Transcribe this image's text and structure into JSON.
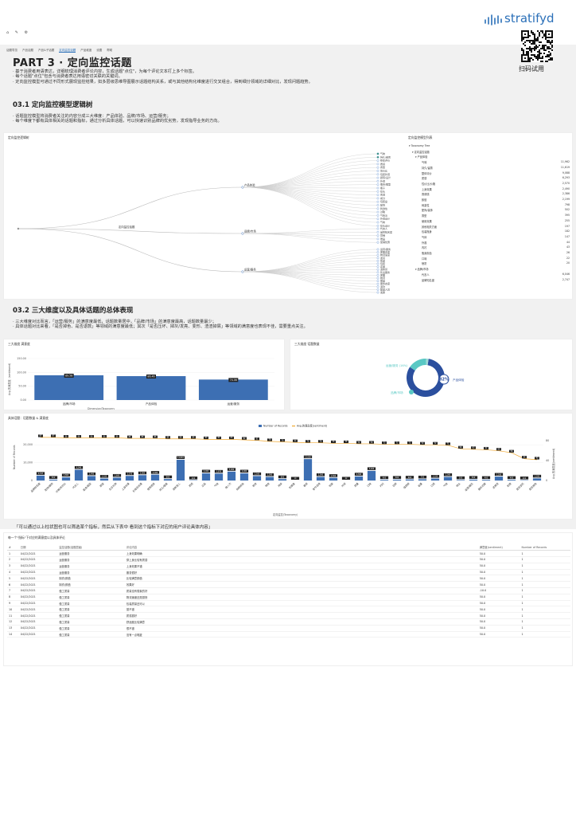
{
  "brand": {
    "logo_text": "stratifyd",
    "qr_caption": "扫码试用"
  },
  "toolbar": {
    "icons": [
      "home-icon",
      "pencil-icon",
      "gear-icon"
    ]
  },
  "tabs": [
    "话题导览",
    "产品话题",
    "产品&子话题",
    "定向监控话题",
    "产品维度",
    "设置",
    "帮助"
  ],
  "active_tab": 3,
  "part_title": "PART 3 · 定向监控话题",
  "intro_bullets": [
    "基于消费者用语表达，详细梳理消费者评论内容，生成话题\"点位\"，为每个评论文本打上多个标签。",
    "每个话题\"点位\"包含与消费者表达用语密切关联的关键词。",
    "定向监控模型可通过不同形式展现监控结果，如多层级思维导图展示话题结构关系，或与其他结构化维度进行交叉组合，得到细分领域的详细对比，发现问题趋势。"
  ],
  "s1": {
    "title": "03.1 定向监控模型逻辑树",
    "bullets": [
      "话题监控模型将消费者关注的内容分成三大维度：产品体验、品牌/市场、运营/服务；",
      "每个维度下都有具体相关的话题和指标，通过分析具体话题，可以快速识别品牌的优劣势，发现指导业务的方向。"
    ]
  },
  "tree": {
    "title": "定向监控逻辑树",
    "root": "定向监控话题",
    "branches": [
      {
        "name": "产品体验",
        "leaves": [
          "气味",
          "持久/留香",
          "整体评价",
          "质感",
          "香型",
          "性价比",
          "包装外观",
          "颜值/设计",
          "外观",
          "瓶身/瓶型",
          "瓶子",
          "喷头",
          "香调",
          "成分",
          "包装盒",
          "配饰",
          "刺激性",
          "过敏",
          "气味淡",
          "外观设计",
          "气味",
          "喷头设计"
        ]
      },
      {
        "name": "品牌/市场",
        "leaves": [
          "代言人",
          "品牌知名度",
          "营销",
          "赠品",
          "促销优惠"
        ]
      },
      {
        "name": "运营/服务",
        "leaves": [
          "运营/服务",
          "客服态度",
          "物流速度",
          "发货",
          "快递",
          "包装",
          "正品",
          "退换货",
          "售后服务",
          "客服",
          "物流",
          "赠品",
          "服务态度",
          "退款",
          "配送人员",
          "发票"
        ]
      }
    ]
  },
  "taxonomy": {
    "title": "定向监控模型列表",
    "header": "Taxonomy Tree",
    "root": "定向监控话题",
    "group1": "产品体验",
    "items": [
      {
        "n": "气味",
        "v": "11,962"
      },
      {
        "n": "持久/留香",
        "v": "11,619"
      },
      {
        "n": "整体评价",
        "v": "9,088"
      },
      {
        "n": "质感",
        "v": "6,293"
      },
      {
        "n": "性价比/价格",
        "v": "2,570"
      },
      {
        "n": "上身效果",
        "v": "2,490"
      },
      {
        "n": "香调感",
        "v": "2,386"
      },
      {
        "n": "颜值",
        "v": "2,199"
      },
      {
        "n": "刺激性",
        "v": "798"
      },
      {
        "n": "配饰/装饰",
        "v": "502"
      },
      {
        "n": "香型",
        "v": "395"
      },
      {
        "n": "使用效果",
        "v": "255"
      },
      {
        "n": "其他相关方面",
        "v": "197"
      },
      {
        "n": "包装瓶身",
        "v": "182"
      },
      {
        "n": "气体",
        "v": "147"
      },
      {
        "n": "外观",
        "v": "44"
      },
      {
        "n": "内衬",
        "v": "43"
      },
      {
        "n": "瓶身颜色",
        "v": "26"
      },
      {
        "n": "口味",
        "v": "22"
      },
      {
        "n": "喷雾",
        "v": "20"
      }
    ],
    "group2": "品牌/市场",
    "items2": [
      {
        "n": "代言人",
        "v": "6,046"
      },
      {
        "n": "品牌知名度",
        "v": "2,747"
      }
    ]
  },
  "s2": {
    "title": "03.2 三大维度以及具体话题的总体表现",
    "bullets": [
      "三大维度对比而言，「运营/服务」的满意度最低，话题数量居中，「品牌/市场」的满意度最高，话题数量最少；",
      "具体话题对比来看，「是否掉色、是否退款」等领域的满意度最低；其次「是否压坏、掉灰/发亮、变形、渣渣掉屑」等领域的满意度也表现不佳，需要重点关注。"
    ]
  },
  "chart1": {
    "title": "三大维度 满意度",
    "ylabel": "Avg.的满意度（sentiment）",
    "xlabel": "Dimension/Taxonomy",
    "yticks": [
      "0.00",
      "50.00",
      "100.00",
      "150.00"
    ],
    "chart_data": {
      "type": "bar",
      "categories": [
        "品牌/市场",
        "产品体验",
        "运营/服务"
      ],
      "values": [
        89.6,
        86.5,
        74.1
      ],
      "labels": [
        "89.58",
        "86.46",
        "74.06"
      ],
      "ylim": [
        0,
        150
      ]
    }
  },
  "chart2": {
    "title": "三大维度 话题数量",
    "chart_data": {
      "type": "pie",
      "slices": [
        {
          "name": "产品体验",
          "value": 82
        },
        {
          "name": "运营/服务 (16%)",
          "value": 16
        },
        {
          "name": "品牌/市场",
          "value": 2
        }
      ],
      "center_label": "82%"
    }
  },
  "chart3": {
    "title": "具体话题：话题数量 & 满意度",
    "legend": [
      "Number of Records",
      "Avg.的满意度(sentiment)"
    ],
    "y_left": "Number of Records",
    "y_right": "Avg.的满意度(sentiment)",
    "yticks_left": [
      "0",
      "10,000",
      "20,000"
    ],
    "yticks_right": [
      "0",
      "40",
      "80"
    ],
    "xlabel": "定向监控(Taxonomy)",
    "chart_data": {
      "type": "bar+line",
      "categories": [
        "品牌知名度",
        "配饰/装饰",
        "价格/性价比",
        "代言人",
        "瓶身/瓶型",
        "颜值",
        "生日礼物",
        "上身效果",
        "价格及优惠",
        "使用感受",
        "持久/留香",
        "清新宜人",
        "质感",
        "正品",
        "气味",
        "情人节",
        "购物体验",
        "新奇",
        "物流",
        "持续",
        "包装盒",
        "香调",
        "季节适用",
        "包装",
        "外观",
        "质量",
        "口味",
        "内衬",
        "日期",
        "保质期",
        "容量",
        "口感",
        "气味",
        "喷头",
        "运营/服务",
        "服务态度",
        "退换货",
        "刺激",
        "是否变形",
        "是否掉色"
      ],
      "bars": [
        2747,
        502,
        1800,
        6046,
        2490,
        1100,
        1600,
        2570,
        3000,
        3300,
        800,
        11619,
        200,
        4000,
        3870,
        5000,
        4000,
        2500,
        2000,
        800,
        10,
        12000,
        2000,
        1500,
        22,
        2300,
        5400,
        400,
        500,
        600,
        700,
        1100,
        2000,
        300,
        500,
        400,
        2200,
        400,
        200,
        1200
      ],
      "line": [
        87,
        87,
        86,
        86,
        86,
        86,
        86,
        85,
        85,
        85,
        84,
        84,
        84,
        83,
        83,
        83,
        82,
        81,
        79,
        78,
        77,
        76,
        76,
        75,
        75,
        74,
        74,
        73,
        73,
        73,
        72,
        72,
        71,
        64,
        63,
        62,
        60,
        56,
        44,
        42
      ],
      "bar_labels": [
        "2,747",
        "502",
        "1,800",
        "6,046",
        "2,490",
        "1,100",
        "1,600",
        "2,570",
        "3,000",
        "3,300",
        "800",
        "11,619",
        "200",
        "4,000",
        "3,870",
        "5,000",
        "4,000",
        "2,500",
        "2,000",
        "800",
        "10",
        "12,000",
        "2,000",
        "1,500",
        "22",
        "2,300",
        "5,400",
        "400",
        "500",
        "600",
        "700",
        "1,100",
        "2,000",
        "300",
        "500",
        "400",
        "2,200",
        "400",
        "200",
        "1,200"
      ],
      "line_labels": [
        "87",
        "87",
        "86",
        "86",
        "86",
        "86",
        "86",
        "85",
        "85",
        "85",
        "84",
        "84",
        "84",
        "83",
        "83",
        "83",
        "82",
        "81",
        "79",
        "78",
        "77",
        "76",
        "76",
        "75",
        "75",
        "74",
        "74",
        "73",
        "73",
        "73",
        "72",
        "72",
        "71",
        "64",
        "63",
        "62",
        "60",
        "56",
        "44",
        "42"
      ],
      "y_left_lim": [
        0,
        25000
      ],
      "y_right_lim": [
        0,
        90
      ]
    }
  },
  "note": "「可以通过以上柱状图也可以筛选某个指标，然后从下表中 看到这个指标下对应的用户评论具体内容」",
  "table": {
    "title": "每一个\"指标\"下对应的满意度以及具体评论",
    "columns": [
      "#",
      "日期",
      "监控话题(话题层级)",
      "评论内容",
      "满意度(sentiment)",
      "Number of Records"
    ],
    "rows": [
      [
        "1",
        "04/22/2021",
        "运营服务",
        "上身效果明确",
        "50.0",
        "1"
      ],
      [
        "2",
        "04/22/2021",
        "运营服务",
        "穿上身比较有质感",
        "50.0",
        "1"
      ],
      [
        "3",
        "04/22/2021",
        "运营服务",
        "上身效果不错",
        "50.0",
        "1"
      ],
      [
        "4",
        "04/22/2021",
        "运营服务",
        "服务很好",
        "50.0",
        "1"
      ],
      [
        "5",
        "04/22/2021",
        "制衣/颜值",
        "比较满意颜值",
        "50.0",
        "1"
      ],
      [
        "6",
        "04/22/2021",
        "制衣/颜值",
        "效果好",
        "50.0",
        "1"
      ],
      [
        "7",
        "04/22/2021",
        "做工质量",
        "质量没有想象的好",
        "-10.0",
        "1"
      ],
      [
        "8",
        "04/22/2021",
        "做工质量",
        "物流速度还是挺快",
        "50.0",
        "1"
      ],
      [
        "9",
        "04/22/2021",
        "做工质量",
        "包装质量还可以",
        "50.0",
        "1"
      ],
      [
        "10",
        "04/22/2021",
        "做工质量",
        "挺不错",
        "50.0",
        "1"
      ],
      [
        "11",
        "04/22/2021",
        "做工质量",
        "质感挺好",
        "50.0",
        "1"
      ],
      [
        "12",
        "04/22/2021",
        "做工质量",
        "舒适度比较满意",
        "50.0",
        "1"
      ],
      [
        "13",
        "04/22/2021",
        "做工质量",
        "很不错",
        "50.0",
        "1"
      ],
      [
        "14",
        "04/22/2021",
        "做工质量",
        "没有一点瑕疵",
        "50.0",
        "1"
      ]
    ]
  }
}
